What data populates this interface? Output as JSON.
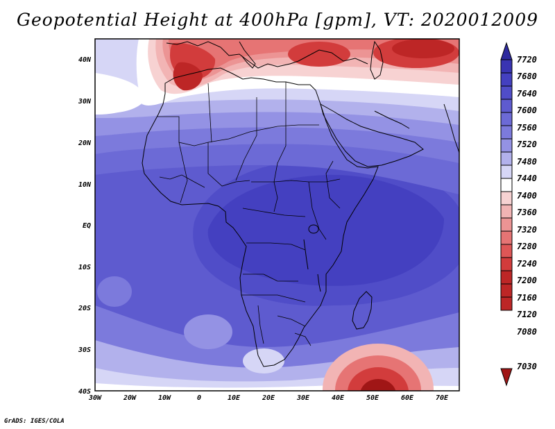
{
  "title": "Geopotential Height at 400hPa [gpm], VT: 2020012009",
  "footer": "GrADS: IGES/COLA",
  "map": {
    "projection": "latlon",
    "lon_range": [
      -30,
      75
    ],
    "lat_range": [
      -40,
      45
    ],
    "lon_ticks": [
      "30W",
      "20W",
      "10W",
      "0",
      "10E",
      "20E",
      "30E",
      "40E",
      "50E",
      "60E",
      "70E"
    ],
    "lat_ticks": [
      "40N",
      "30N",
      "20N",
      "10N",
      "EQ",
      "10S",
      "20S",
      "30S",
      "40S"
    ]
  },
  "colorbar": {
    "labels": [
      "7720",
      "7680",
      "7640",
      "7600",
      "7560",
      "7520",
      "7480",
      "7440",
      "7400",
      "7360",
      "7320",
      "7280",
      "7240",
      "7200",
      "7160",
      "7120",
      "7080",
      "7030"
    ],
    "colors": [
      "#2e2a9e",
      "#3934b2",
      "#4440c0",
      "#504dc8",
      "#5e5bcf",
      "#6c6ad6",
      "#7c7adc",
      "#9492e4",
      "#b2b1ec",
      "#d6d6f6",
      "#ffffff",
      "#f7d2d2",
      "#f2b4b4",
      "#ec9494",
      "#e67474",
      "#de5656",
      "#d23c3c",
      "#bd2626",
      "#a01616"
    ]
  }
}
